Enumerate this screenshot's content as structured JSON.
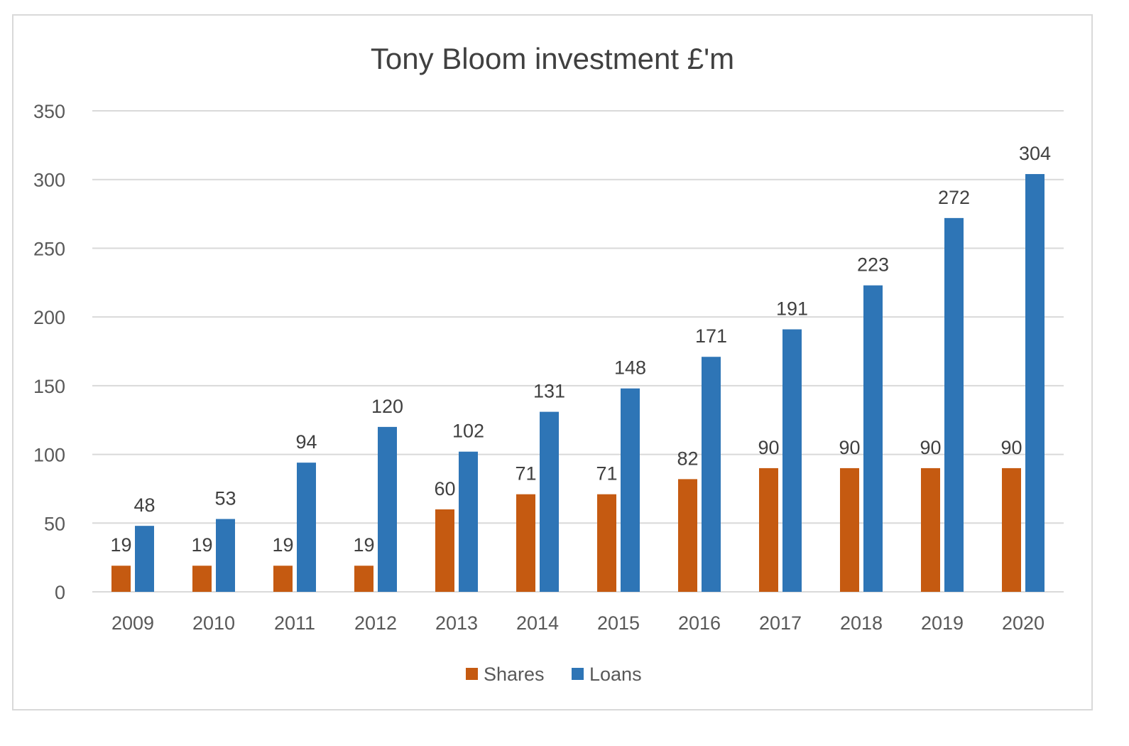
{
  "chart_data": {
    "type": "bar",
    "title": "Tony Bloom investment £'m",
    "xlabel": "",
    "ylabel": "",
    "ylim": [
      0,
      350
    ],
    "yticks": [
      0,
      50,
      100,
      150,
      200,
      250,
      300,
      350
    ],
    "grid": true,
    "legend_position": "bottom",
    "categories": [
      "2009",
      "2010",
      "2011",
      "2012",
      "2013",
      "2014",
      "2015",
      "2016",
      "2017",
      "2018",
      "2019",
      "2020"
    ],
    "series": [
      {
        "name": "Shares",
        "color": "#c55a11",
        "values": [
          19,
          19,
          19,
          19,
          60,
          71,
          71,
          82,
          90,
          90,
          90,
          90
        ]
      },
      {
        "name": "Loans",
        "color": "#2e75b6",
        "values": [
          48,
          53,
          94,
          120,
          102,
          131,
          148,
          171,
          191,
          223,
          272,
          304
        ]
      }
    ]
  }
}
